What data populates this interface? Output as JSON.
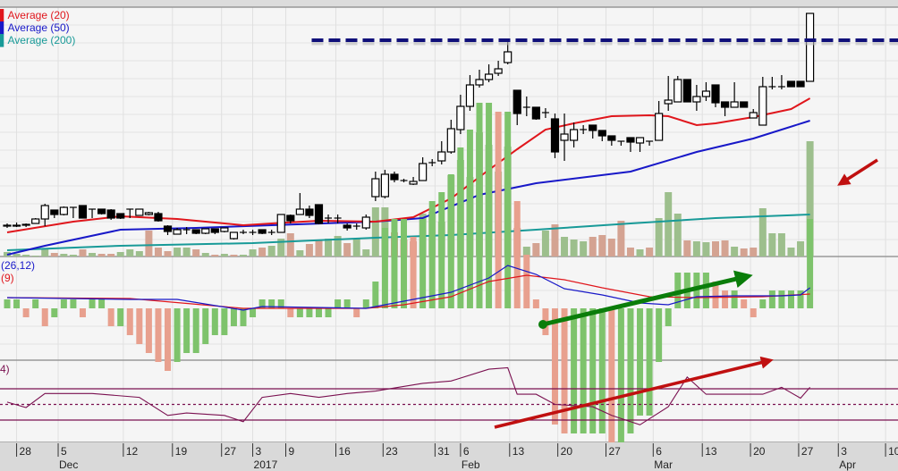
{
  "chart_data": {
    "type": "candlestick",
    "panes": [
      "price",
      "volume",
      "macd",
      "rsi"
    ],
    "legend": {
      "ma20": {
        "label": "Average (20)",
        "color": "#e0161c"
      },
      "ma50": {
        "label": "Average (50)",
        "color": "#1818c8"
      },
      "ma200": {
        "label": "Average (200)",
        "color": "#189a98"
      },
      "macd_label": "(26,12)",
      "macd_color": "#1818c8",
      "signal_label": "(9)",
      "signal_color": "#e0161c",
      "rsi_label": "4)",
      "rsi_color": "#7a1050"
    },
    "candles_ohlc": [
      [
        3.8,
        4.0,
        3.5,
        3.7
      ],
      [
        3.7,
        4.1,
        3.6,
        3.8
      ],
      [
        3.8,
        4.0,
        3.6,
        3.9
      ],
      [
        4.0,
        4.6,
        4.0,
        4.5
      ],
      [
        4.5,
        6.2,
        3.7,
        6.0
      ],
      [
        5.5,
        5.5,
        4.6,
        5.0
      ],
      [
        5.0,
        5.9,
        4.9,
        5.8
      ],
      [
        5.8,
        5.8,
        4.6,
        5.8
      ],
      [
        6.0,
        6.0,
        4.6,
        4.6
      ],
      [
        5.6,
        5.6,
        4.6,
        5.6
      ],
      [
        5.6,
        5.6,
        5.0,
        5.1
      ],
      [
        5.5,
        5.6,
        4.4,
        4.6
      ],
      [
        5.1,
        5.1,
        4.5,
        4.6
      ],
      [
        5.6,
        5.6,
        4.6,
        5.6
      ],
      [
        4.9,
        5.6,
        4.9,
        5.6
      ],
      [
        5.0,
        5.3,
        4.9,
        5.2
      ],
      [
        5.1,
        5.3,
        4.2,
        4.3
      ],
      [
        3.7,
        3.8,
        2.7,
        3.1
      ],
      [
        2.8,
        3.5,
        2.8,
        3.3
      ],
      [
        3.3,
        3.6,
        2.8,
        3.3
      ],
      [
        3.3,
        3.3,
        2.8,
        2.9
      ],
      [
        2.9,
        3.4,
        2.8,
        3.4
      ],
      [
        3.4,
        3.4,
        2.8,
        3.0
      ],
      [
        3.1,
        3.5,
        3.0,
        3.5
      ],
      [
        2.3,
        3.0,
        2.2,
        3.0
      ],
      [
        3.0,
        3.3,
        2.8,
        3.0
      ],
      [
        3.0,
        3.3,
        2.7,
        3.0
      ],
      [
        3.3,
        3.3,
        2.8,
        2.9
      ],
      [
        3.0,
        3.3,
        2.7,
        3.0
      ],
      [
        3.0,
        5.0,
        3.0,
        5.0
      ],
      [
        4.9,
        5.0,
        4.0,
        4.3
      ],
      [
        5.0,
        7.4,
        5.0,
        5.6
      ],
      [
        5.6,
        6.0,
        4.6,
        4.9
      ],
      [
        6.1,
        6.1,
        3.9,
        4.0
      ],
      [
        4.6,
        5.0,
        4.0,
        4.6
      ],
      [
        4.6,
        5.0,
        4.0,
        4.6
      ],
      [
        3.8,
        4.0,
        3.2,
        3.5
      ],
      [
        3.7,
        4.0,
        3.3,
        3.7
      ],
      [
        3.5,
        5.0,
        3.3,
        4.7
      ],
      [
        7.0,
        9.8,
        6.5,
        9.0
      ],
      [
        7.0,
        10.0,
        6.8,
        9.5
      ],
      [
        9.5,
        9.8,
        8.6,
        8.9
      ],
      [
        8.8,
        9.0,
        8.6,
        8.8
      ],
      [
        8.4,
        9.2,
        8.3,
        8.7
      ],
      [
        8.8,
        11.4,
        8.8,
        10.7
      ],
      [
        10.8,
        11.2,
        10.4,
        10.8
      ],
      [
        11.0,
        13.2,
        10.6,
        12.0
      ],
      [
        12.0,
        15.6,
        11.8,
        14.6
      ],
      [
        14.5,
        18.4,
        14.0,
        17.1
      ],
      [
        17.1,
        20.6,
        16.6,
        19.5
      ],
      [
        19.5,
        21.2,
        19.2,
        20.1
      ],
      [
        20.1,
        21.8,
        19.8,
        20.7
      ],
      [
        20.8,
        22.2,
        20.5,
        21.3
      ],
      [
        22.0,
        24.6,
        21.8,
        23.2
      ],
      [
        18.9,
        18.9,
        15.0,
        16.3
      ],
      [
        17.0,
        18.2,
        16.0,
        17.0
      ],
      [
        17.0,
        17.0,
        15.6,
        15.7
      ],
      [
        16.4,
        16.9,
        15.8,
        16.4
      ],
      [
        15.7,
        16.3,
        11.3,
        12.0
      ],
      [
        13.3,
        16.3,
        11.0,
        14.0
      ],
      [
        13.3,
        15.3,
        12.5,
        14.5
      ],
      [
        14.5,
        15.0,
        14.0,
        14.5
      ],
      [
        15.0,
        15.0,
        13.5,
        14.4
      ],
      [
        14.4,
        14.4,
        13.2,
        13.8
      ],
      [
        13.8,
        13.8,
        12.7,
        13.3
      ],
      [
        13.2,
        13.2,
        12.7,
        13.2
      ],
      [
        13.6,
        13.6,
        12.0,
        13.1
      ],
      [
        13.0,
        13.6,
        12.0,
        13.6
      ],
      [
        13.2,
        13.2,
        12.7,
        13.2
      ],
      [
        13.3,
        17.7,
        13.3,
        16.3
      ],
      [
        17.4,
        20.5,
        16.6,
        17.8
      ],
      [
        17.6,
        20.5,
        17.6,
        20.1
      ],
      [
        20.1,
        20.1,
        17.6,
        17.6
      ],
      [
        17.6,
        19.5,
        16.6,
        18.2
      ],
      [
        18.2,
        19.8,
        17.7,
        18.8
      ],
      [
        19.5,
        19.5,
        17.0,
        17.5
      ],
      [
        17.6,
        17.6,
        16.0,
        17.0
      ],
      [
        17.0,
        19.8,
        17.0,
        17.6
      ],
      [
        17.6,
        17.6,
        17.0,
        17.0
      ],
      [
        15.8,
        16.8,
        15.8,
        16.4
      ],
      [
        15.0,
        20.4,
        15.0,
        19.3
      ],
      [
        19.3,
        20.4,
        19.0,
        19.3
      ],
      [
        19.3,
        20.6,
        19.0,
        19.3
      ],
      [
        19.9,
        19.9,
        19.3,
        19.3
      ],
      [
        19.9,
        19.9,
        19.3,
        19.3
      ],
      [
        19.9,
        27.5,
        19.9,
        27.5
      ]
    ],
    "resistance_level": 24.5,
    "resistance_from_index": 33,
    "ma20": [
      [
        0,
        3.0
      ],
      [
        7,
        4.2
      ],
      [
        12,
        4.8
      ],
      [
        18,
        4.5
      ],
      [
        25,
        3.8
      ],
      [
        28,
        4.0
      ],
      [
        33,
        4.3
      ],
      [
        39,
        4.2
      ],
      [
        43,
        4.7
      ],
      [
        47,
        6.8
      ],
      [
        51,
        10.0
      ],
      [
        54,
        12.3
      ],
      [
        57,
        14.5
      ],
      [
        60,
        15.2
      ],
      [
        64,
        16.0
      ],
      [
        68,
        16.1
      ],
      [
        70,
        16.0
      ],
      [
        73,
        15.0
      ],
      [
        75,
        15.2
      ],
      [
        79,
        15.9
      ],
      [
        83,
        16.8
      ],
      [
        85,
        18.0
      ]
    ],
    "ma50": [
      [
        0,
        0.5
      ],
      [
        4,
        1.5
      ],
      [
        12,
        3.3
      ],
      [
        20,
        3.5
      ],
      [
        28,
        3.8
      ],
      [
        39,
        4.2
      ],
      [
        44,
        4.6
      ],
      [
        50,
        7.2
      ],
      [
        56,
        8.5
      ],
      [
        66,
        9.8
      ],
      [
        73,
        12.0
      ],
      [
        79,
        13.5
      ],
      [
        85,
        15.5
      ]
    ],
    "ma200": [
      [
        0,
        1.0
      ],
      [
        12,
        1.5
      ],
      [
        26,
        1.8
      ],
      [
        39,
        2.4
      ],
      [
        47,
        2.7
      ],
      [
        56,
        3.3
      ],
      [
        66,
        4.0
      ],
      [
        75,
        4.6
      ],
      [
        85,
        5.0
      ]
    ],
    "volume": [
      5,
      3,
      2,
      1,
      8,
      4,
      3,
      2,
      8,
      4,
      3,
      3,
      5,
      8,
      6,
      29,
      10,
      6,
      10,
      10,
      8,
      4,
      2,
      3,
      2,
      2,
      8,
      10,
      12,
      20,
      26,
      7,
      14,
      18,
      20,
      23,
      15,
      20,
      8,
      55,
      55,
      27,
      19,
      17,
      48,
      50,
      39,
      91,
      108,
      89,
      139,
      125,
      95,
      123,
      32,
      11,
      15,
      29,
      36,
      22,
      19,
      17,
      22,
      24,
      20,
      40,
      10,
      8,
      10,
      43,
      72,
      48,
      18,
      17,
      16,
      17,
      18,
      11,
      9,
      10,
      54,
      26,
      26,
      10,
      17,
      129
    ],
    "volume_colors": {
      "up": "#9dbf8d",
      "down": "#d4a392"
    },
    "macd": [
      [
        0,
        1.2
      ],
      [
        13,
        1.0
      ],
      [
        18,
        1.0
      ],
      [
        25,
        -0.2
      ],
      [
        27,
        0.2
      ],
      [
        38,
        0.0
      ],
      [
        42,
        0.8
      ],
      [
        47,
        1.8
      ],
      [
        51,
        3.4
      ],
      [
        53,
        4.8
      ],
      [
        56,
        3.8
      ],
      [
        59,
        2.2
      ],
      [
        63,
        1.5
      ],
      [
        67,
        0.6
      ],
      [
        70,
        0.4
      ],
      [
        73,
        1.3
      ],
      [
        77,
        1.4
      ],
      [
        82,
        1.4
      ],
      [
        84,
        1.5
      ],
      [
        85,
        2.3
      ]
    ],
    "signal": [
      [
        0,
        1.2
      ],
      [
        13,
        1.1
      ],
      [
        25,
        0.0
      ],
      [
        38,
        0.0
      ],
      [
        42,
        0.4
      ],
      [
        47,
        1.3
      ],
      [
        51,
        3.0
      ],
      [
        55,
        3.7
      ],
      [
        59,
        3.2
      ],
      [
        63,
        2.3
      ],
      [
        68,
        1.3
      ],
      [
        73,
        1.2
      ],
      [
        80,
        1.3
      ],
      [
        85,
        1.6
      ]
    ],
    "macd_histogram": [
      1,
      1,
      -1,
      1,
      -2,
      -1,
      1,
      1,
      -1,
      1,
      1,
      -2,
      -2,
      -3,
      -4,
      -5,
      -6,
      -7,
      -6,
      -5,
      -5,
      -4,
      -3,
      -3,
      -2,
      -2,
      -1,
      1,
      1,
      1,
      -1,
      -1,
      -1,
      -1,
      -1,
      1,
      1,
      -1,
      1,
      3,
      9,
      10,
      10,
      8,
      10,
      12,
      13,
      15,
      18,
      20,
      23,
      23,
      22,
      22,
      12,
      6,
      1,
      -3,
      -13,
      -14,
      -14,
      -14,
      -14,
      -14,
      -15,
      -15,
      -14,
      -12,
      -12,
      -6,
      -2,
      4,
      4,
      4,
      4,
      3,
      2,
      2,
      1,
      -1,
      1,
      2,
      2,
      2,
      2,
      10
    ],
    "histogram_colors": {
      "rising": "#7ec36c",
      "falling": "#e8a08e"
    },
    "rsi": [
      [
        0,
        53
      ],
      [
        2,
        46
      ],
      [
        4,
        64
      ],
      [
        9,
        64
      ],
      [
        14,
        59
      ],
      [
        17,
        36
      ],
      [
        19,
        39
      ],
      [
        23,
        36
      ],
      [
        25,
        28
      ],
      [
        27,
        59
      ],
      [
        30,
        64
      ],
      [
        33,
        59
      ],
      [
        36,
        64
      ],
      [
        39,
        67
      ],
      [
        44,
        77
      ],
      [
        47,
        80
      ],
      [
        51,
        95
      ],
      [
        53,
        97
      ],
      [
        54,
        63
      ],
      [
        56,
        63
      ],
      [
        58,
        50
      ],
      [
        62,
        47
      ],
      [
        64,
        36
      ],
      [
        67,
        24
      ],
      [
        70,
        47
      ],
      [
        72,
        85
      ],
      [
        74,
        63
      ],
      [
        77,
        63
      ],
      [
        80,
        63
      ],
      [
        82,
        72
      ],
      [
        84,
        58
      ],
      [
        85,
        72
      ]
    ],
    "rsi_levels": [
      70,
      50,
      30
    ],
    "x_ticks": [
      {
        "index": 1,
        "label": "28"
      },
      {
        "index": 5.4,
        "label": "5",
        "month": "Dec"
      },
      {
        "index": 12.3,
        "label": "12"
      },
      {
        "index": 17.5,
        "label": "19"
      },
      {
        "index": 22.7,
        "label": "27"
      },
      {
        "index": 26,
        "label": "3",
        "month": "2017"
      },
      {
        "index": 29.5,
        "label": "9"
      },
      {
        "index": 34.8,
        "label": "16"
      },
      {
        "index": 39.8,
        "label": "23"
      },
      {
        "index": 45.3,
        "label": "31"
      },
      {
        "index": 48,
        "label": "6",
        "month": "Feb"
      },
      {
        "index": 53.2,
        "label": "13"
      },
      {
        "index": 58.3,
        "label": "20"
      },
      {
        "index": 63.4,
        "label": "27"
      },
      {
        "index": 68.4,
        "label": "6",
        "month": "Mar"
      },
      {
        "index": 73.6,
        "label": "13"
      },
      {
        "index": 78.7,
        "label": "20"
      },
      {
        "index": 83.8,
        "label": "27"
      },
      {
        "index": 88,
        "label": "3",
        "month": "Apr"
      },
      {
        "index": 93,
        "label": "10"
      }
    ]
  }
}
